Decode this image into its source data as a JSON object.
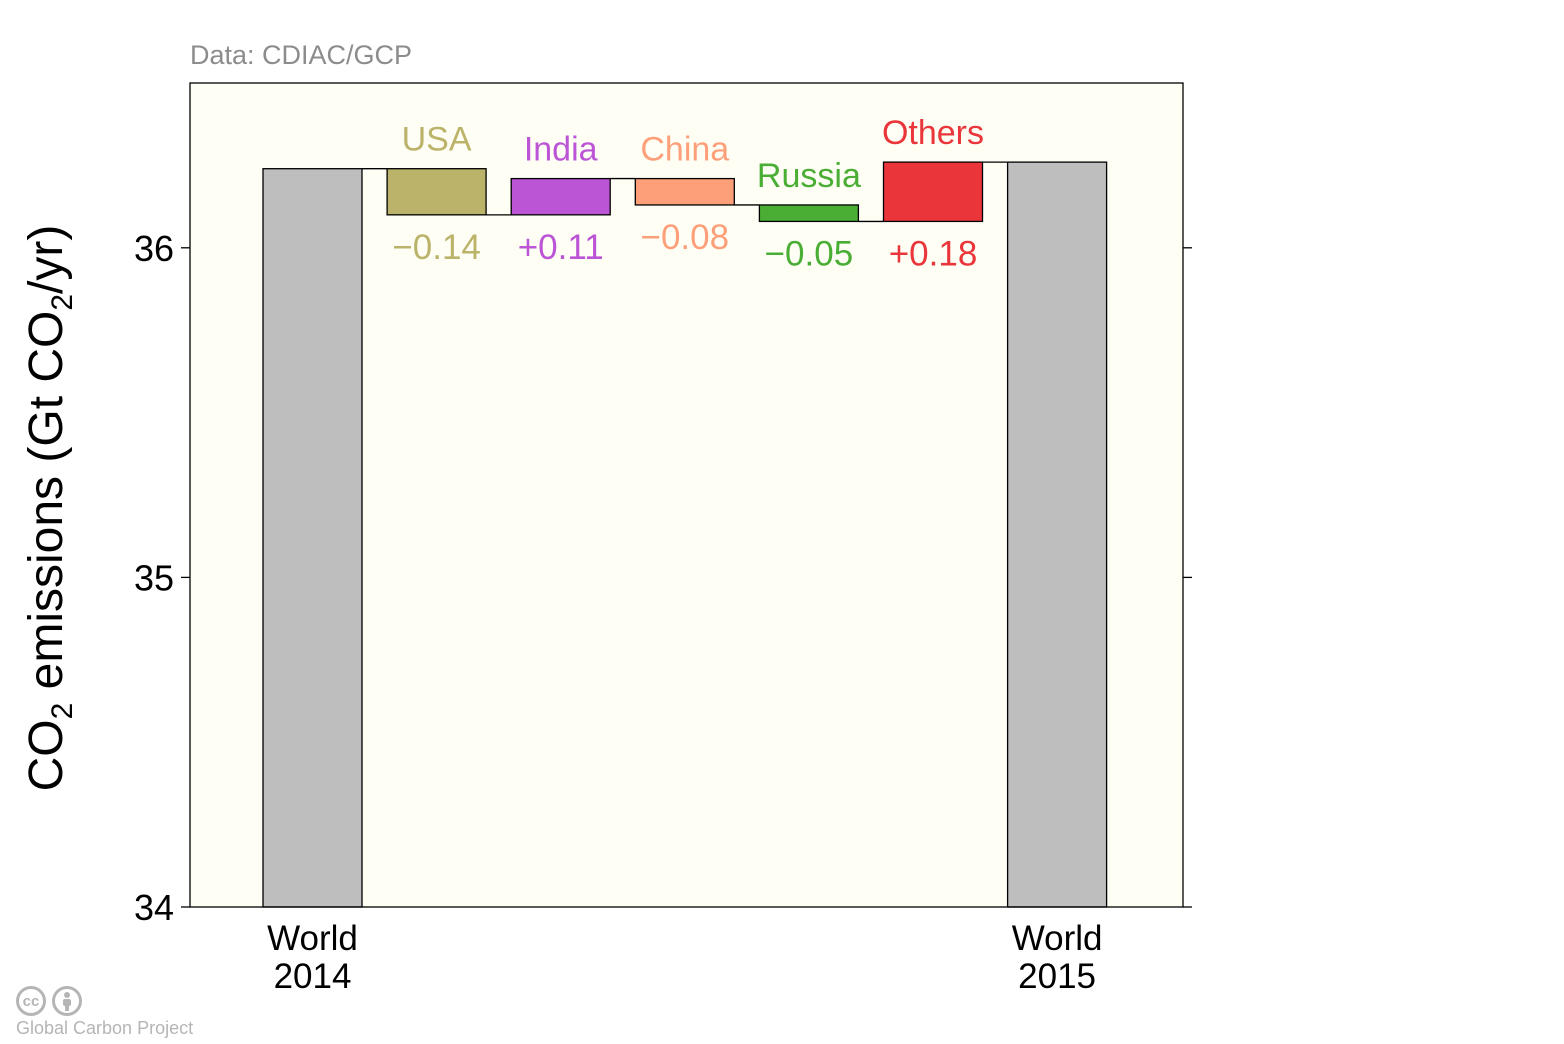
{
  "source_note": "Data: CDIAC/GCP",
  "logo": {
    "icons": [
      "cc-icon",
      "attribution-icon"
    ],
    "cc_glyph": "cc",
    "text": "Global Carbon Project"
  },
  "chart_data": {
    "type": "bar",
    "subtype": "waterfall",
    "ylabel_parts": [
      "CO",
      "2",
      " emissions (Gt CO",
      "2",
      "/yr)"
    ],
    "ylim": [
      34,
      36.5
    ],
    "yticks": [
      "34",
      "35",
      "36"
    ],
    "grid": false,
    "background": "#fefef5",
    "totals": [
      {
        "label_lines": [
          "World",
          "2014"
        ],
        "value": 36.24,
        "color": "#bebebe"
      },
      {
        "label_lines": [
          "World",
          "2015"
        ],
        "value": 36.26,
        "color": "#bebebe"
      }
    ],
    "changes": [
      {
        "name": "USA",
        "change": -0.14,
        "change_label": "−0.14",
        "color": "#bbb369"
      },
      {
        "name": "India",
        "change": 0.11,
        "change_label": "+0.11",
        "color": "#bb55d5"
      },
      {
        "name": "China",
        "change": -0.08,
        "change_label": "−0.08",
        "color": "#fda07a"
      },
      {
        "name": "Russia",
        "change": -0.05,
        "change_label": "−0.05",
        "color": "#4aae35"
      },
      {
        "name": "Others",
        "change": 0.18,
        "change_label": "+0.18",
        "color": "#ea363a"
      }
    ]
  }
}
